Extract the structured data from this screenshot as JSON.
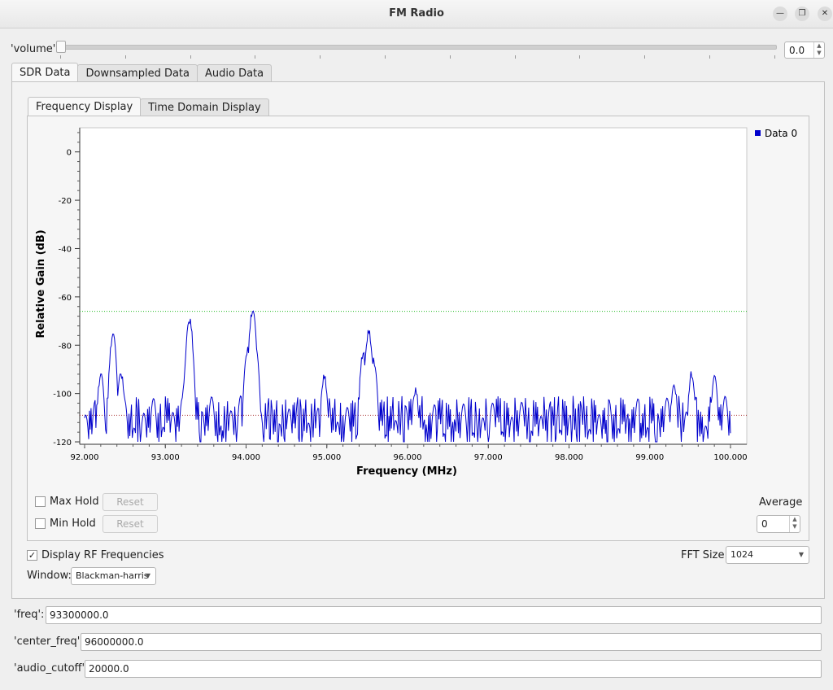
{
  "window": {
    "title": "FM Radio",
    "min_icon": "minimize-icon",
    "max_icon": "restore-icon",
    "close_icon": "close-icon"
  },
  "volume": {
    "label": "'volume'",
    "value": "0.0"
  },
  "top_tabs": [
    {
      "label": "SDR Data",
      "active": true
    },
    {
      "label": "Downsampled Data",
      "active": false
    },
    {
      "label": "Audio Data",
      "active": false
    }
  ],
  "sub_tabs": [
    {
      "label": "Frequency Display",
      "active": true
    },
    {
      "label": "Time Domain Display",
      "active": false
    }
  ],
  "controls": {
    "max_hold": {
      "label": "Max Hold",
      "checked": false
    },
    "min_hold": {
      "label": "Min Hold",
      "checked": false
    },
    "reset_label": "Reset",
    "average_label": "Average",
    "average_value": "0",
    "display_rf": {
      "label": "Display RF Frequencies",
      "checked": true
    },
    "fft_label": "FFT Size:",
    "fft_value": "1024",
    "window_label": "Window:",
    "window_value": "Blackman-harris"
  },
  "params": [
    {
      "label": "'freq':",
      "value": "93300000.0"
    },
    {
      "label": "'center_freq':",
      "value": "96000000.0"
    },
    {
      "label": "'audio_cutoff':",
      "value": "20000.0"
    }
  ],
  "chart_data": {
    "type": "line",
    "xlabel": "Frequency (MHz)",
    "ylabel": "Relative Gain (dB)",
    "xlim": [
      92.0,
      100.0
    ],
    "ylim": [
      -121,
      10
    ],
    "x_ticks": [
      "92.000",
      "93.000",
      "94.000",
      "95.000",
      "96.000",
      "97.000",
      "98.000",
      "99.000",
      "100.000"
    ],
    "y_ticks": [
      "0",
      "-20",
      "-40",
      "-60",
      "-80",
      "-100",
      "-120"
    ],
    "legend": {
      "position": "top-right",
      "entries": [
        "Data 0"
      ]
    },
    "series_color": "#0000cc",
    "markers": {
      "max_hold_line_db": -66,
      "min_line_db": -109
    },
    "series": [
      {
        "name": "Data 0",
        "peaks": [
          {
            "x": 92.35,
            "y": -76
          },
          {
            "x": 92.2,
            "y": -92
          },
          {
            "x": 92.45,
            "y": -91
          },
          {
            "x": 93.3,
            "y": -69
          },
          {
            "x": 93.25,
            "y": -91
          },
          {
            "x": 94.08,
            "y": -66
          },
          {
            "x": 94.02,
            "y": -82
          },
          {
            "x": 94.12,
            "y": -82
          },
          {
            "x": 94.97,
            "y": -93
          },
          {
            "x": 95.52,
            "y": -75
          },
          {
            "x": 95.45,
            "y": -84
          },
          {
            "x": 95.58,
            "y": -87
          },
          {
            "x": 96.1,
            "y": -99
          },
          {
            "x": 99.3,
            "y": -96
          },
          {
            "x": 99.52,
            "y": -92
          },
          {
            "x": 99.8,
            "y": -94
          }
        ],
        "noise_floor_db": -110
      }
    ]
  }
}
